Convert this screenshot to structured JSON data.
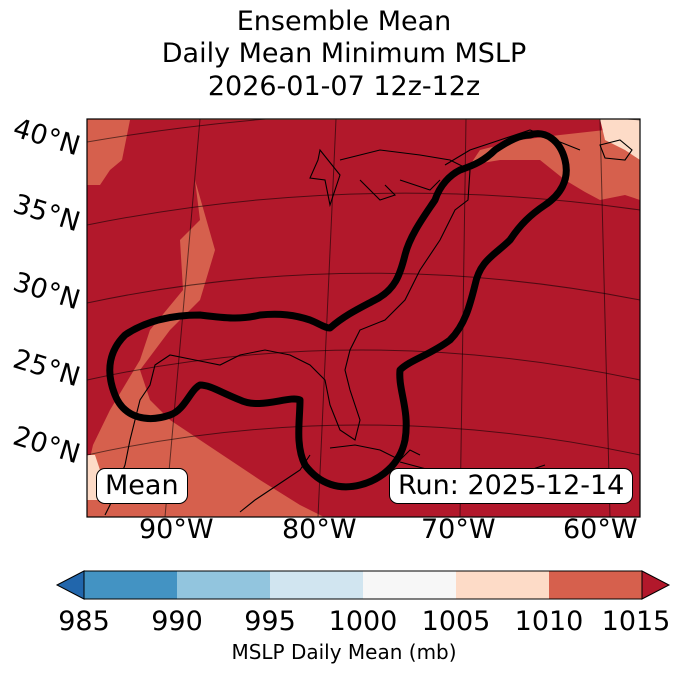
{
  "title": {
    "line1": "Ensemble Mean",
    "line2": "Daily Mean Minimum MSLP",
    "line3": "2026-01-07 12z-12z"
  },
  "map": {
    "lat_labels": [
      "40°N",
      "35°N",
      "30°N",
      "25°N",
      "20°N"
    ],
    "lon_labels": [
      "90°W",
      "80°W",
      "70°W",
      "60°W"
    ],
    "left_box": "Mean",
    "right_box": "Run: 2025-12-14",
    "colors": {
      "band_1005_1010": "#fddbc7",
      "band_1010_1015": "#d6604d",
      "band_above_1015": "#b2182b",
      "contour": "#000000"
    }
  },
  "colorbar": {
    "ticks": [
      "985",
      "990",
      "995",
      "1000",
      "1005",
      "1010",
      "1015"
    ],
    "label": "MSLP Daily Mean (mb)",
    "colors": [
      "#2166ac",
      "#4393c3",
      "#92c5de",
      "#d1e5f0",
      "#f7f7f7",
      "#fddbc7",
      "#d6604d",
      "#b2182b"
    ]
  }
}
